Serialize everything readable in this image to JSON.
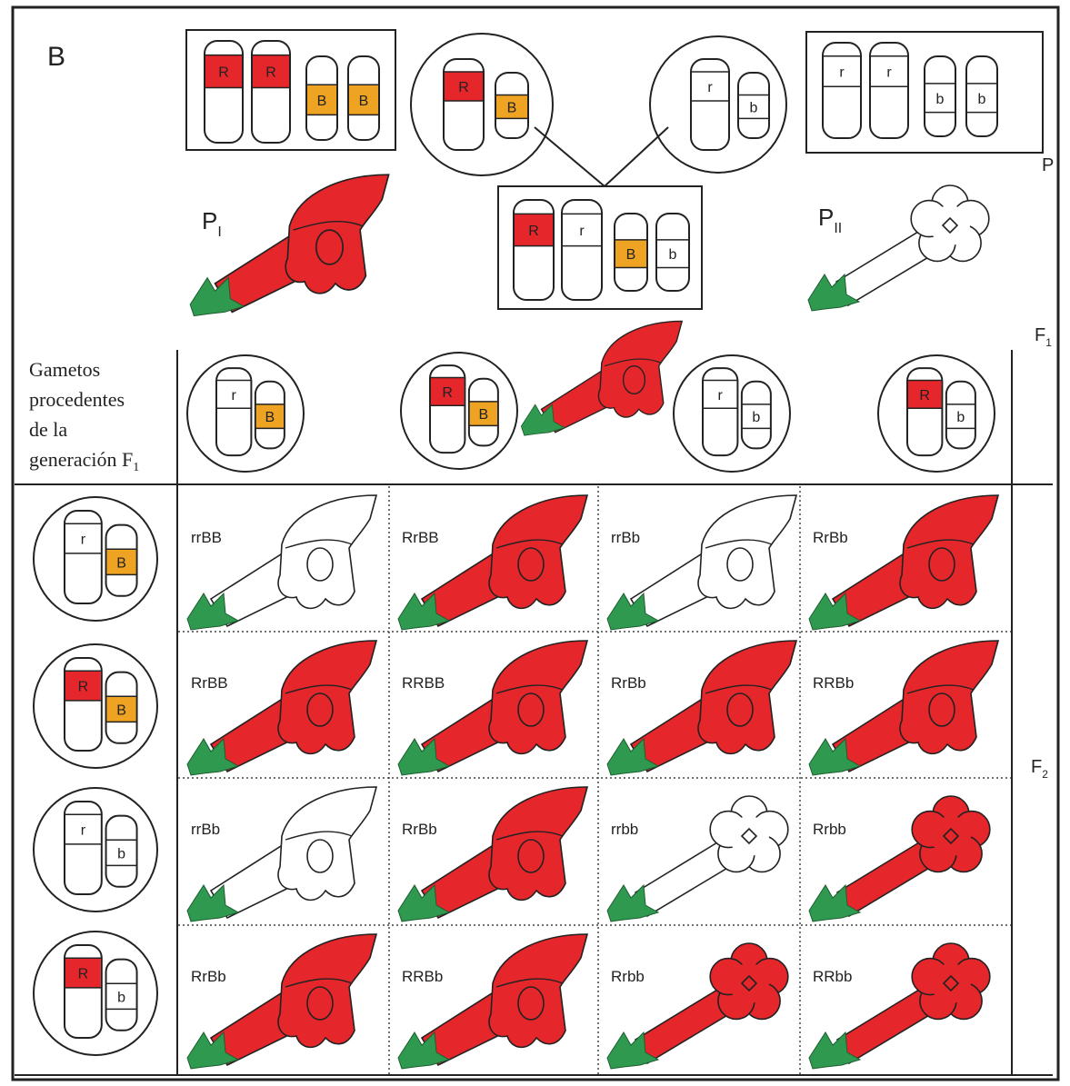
{
  "panel_label": "B",
  "generations": {
    "p": "P",
    "f1": {
      "base": "F",
      "sub": "1"
    },
    "f2": {
      "base": "F",
      "sub": "2"
    }
  },
  "parents": [
    {
      "label": {
        "base": "P",
        "sub": "I"
      },
      "genotype": [
        "R",
        "R",
        "B",
        "B"
      ],
      "gamete": [
        "R",
        "B"
      ]
    },
    {
      "label": {
        "base": "P",
        "sub": "II"
      },
      "genotype": [
        "r",
        "r",
        "b",
        "b"
      ],
      "gamete": [
        "r",
        "b"
      ]
    }
  ],
  "f1_genotype": [
    "R",
    "r",
    "B",
    "b"
  ],
  "gametes_caption": {
    "lines": [
      "Gametos",
      "procedentes",
      "de la",
      "generación F"
    ],
    "sub": "1"
  },
  "column_gametes": [
    [
      "r",
      "B"
    ],
    [
      "R",
      "B"
    ],
    [
      "r",
      "b"
    ],
    [
      "R",
      "b"
    ]
  ],
  "row_gametes": [
    [
      "r",
      "B"
    ],
    [
      "R",
      "B"
    ],
    [
      "r",
      "b"
    ],
    [
      "R",
      "b"
    ]
  ],
  "offspring": [
    [
      "rrBB",
      "RrBB",
      "rrBb",
      "RrBb"
    ],
    [
      "RrBB",
      "RRBB",
      "RrBb",
      "RRBb"
    ],
    [
      "rrBb",
      "RrBb",
      "rrbb",
      "Rrbb"
    ],
    [
      "RrBb",
      "RRBb",
      "Rrbb",
      "RRbb"
    ]
  ]
}
